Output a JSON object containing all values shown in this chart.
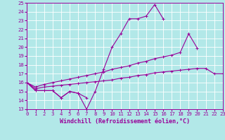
{
  "xlabel": "Windchill (Refroidissement éolien,°C)",
  "background_color": "#b2e8e8",
  "grid_color": "#aad4d4",
  "line_color": "#990099",
  "x_values": [
    0,
    1,
    2,
    3,
    4,
    5,
    6,
    7,
    8,
    9,
    10,
    11,
    12,
    13,
    14,
    15,
    16,
    17,
    18,
    19,
    20,
    21,
    22,
    23
  ],
  "series1": [
    16.0,
    15.1,
    15.1,
    15.1,
    14.3,
    15.0,
    14.8,
    13.0,
    15.0,
    17.5,
    20.0,
    21.5,
    23.2,
    23.2,
    23.5,
    24.8,
    23.2,
    null,
    null,
    null,
    null,
    null,
    null,
    null
  ],
  "series2": [
    16.0,
    15.1,
    15.1,
    15.1,
    14.3,
    15.0,
    14.8,
    14.3,
    null,
    null,
    null,
    null,
    null,
    null,
    null,
    null,
    null,
    null,
    null,
    null,
    null,
    null,
    null,
    null
  ],
  "series3": [
    16.0,
    15.5,
    15.8,
    16.0,
    16.2,
    16.4,
    16.6,
    16.8,
    17.0,
    17.2,
    17.5,
    17.7,
    17.9,
    18.2,
    18.4,
    18.7,
    18.9,
    19.1,
    19.4,
    21.5,
    19.9,
    null,
    null,
    null
  ],
  "series4": [
    16.0,
    15.3,
    15.5,
    15.6,
    15.7,
    15.8,
    15.9,
    16.0,
    16.1,
    16.2,
    16.3,
    16.5,
    16.6,
    16.8,
    16.9,
    17.1,
    17.2,
    17.3,
    17.4,
    17.5,
    17.6,
    17.6,
    17.0,
    17.0
  ],
  "ylim": [
    13,
    25
  ],
  "xlim": [
    0,
    23
  ],
  "yticks": [
    13,
    14,
    15,
    16,
    17,
    18,
    19,
    20,
    21,
    22,
    23,
    24,
    25
  ],
  "xticks": [
    0,
    1,
    2,
    3,
    4,
    5,
    6,
    7,
    8,
    9,
    10,
    11,
    12,
    13,
    14,
    15,
    16,
    17,
    18,
    19,
    20,
    21,
    22,
    23
  ],
  "tick_fontsize": 5.2,
  "xlabel_fontsize": 6.0
}
